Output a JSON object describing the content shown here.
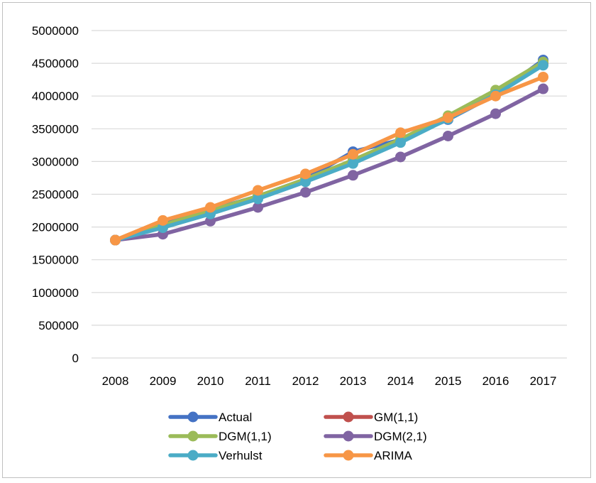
{
  "chart_data": {
    "type": "line",
    "title": "",
    "xlabel": "",
    "ylabel": "",
    "x": [
      "2008",
      "2009",
      "2010",
      "2011",
      "2012",
      "2013",
      "2014",
      "2015",
      "2016",
      "2017"
    ],
    "ylim": [
      0,
      5000000
    ],
    "yticks": [
      0,
      500000,
      1000000,
      1500000,
      2000000,
      2500000,
      3000000,
      3500000,
      4000000,
      4500000,
      5000000
    ],
    "ytick_labels": [
      "0",
      "500000",
      "1000000",
      "1500000",
      "2000000",
      "2500000",
      "3000000",
      "3500000",
      "4000000",
      "4500000",
      "5000000"
    ],
    "grid": "horizontal",
    "legend_position": "bottom",
    "series": [
      {
        "name": "Actual",
        "color": "#4472C4",
        "values": [
          1800000,
          2050000,
          2260000,
          2470000,
          2730000,
          3150000,
          3330000,
          3640000,
          4020000,
          4550000
        ]
      },
      {
        "name": "GM(1,1)",
        "color": "#C0504D",
        "values": [
          1800000,
          2030000,
          2240000,
          2460000,
          2720000,
          3020000,
          3330000,
          3680000,
          4070000,
          4500000
        ]
      },
      {
        "name": "DGM(1,1)",
        "color": "#9BBB59",
        "values": [
          1800000,
          2030000,
          2250000,
          2470000,
          2730000,
          3020000,
          3340000,
          3700000,
          4090000,
          4520000
        ]
      },
      {
        "name": "DGM(2,1)",
        "color": "#8064A2",
        "values": [
          1800000,
          1890000,
          2090000,
          2300000,
          2530000,
          2790000,
          3070000,
          3390000,
          3730000,
          4110000
        ]
      },
      {
        "name": "Verhulst",
        "color": "#4BACC6",
        "values": [
          1800000,
          1990000,
          2200000,
          2430000,
          2690000,
          2970000,
          3290000,
          3650000,
          4020000,
          4470000
        ]
      },
      {
        "name": "ARIMA",
        "color": "#F79646",
        "values": [
          1800000,
          2100000,
          2300000,
          2560000,
          2810000,
          3110000,
          3440000,
          3670000,
          4000000,
          4290000
        ]
      }
    ]
  }
}
